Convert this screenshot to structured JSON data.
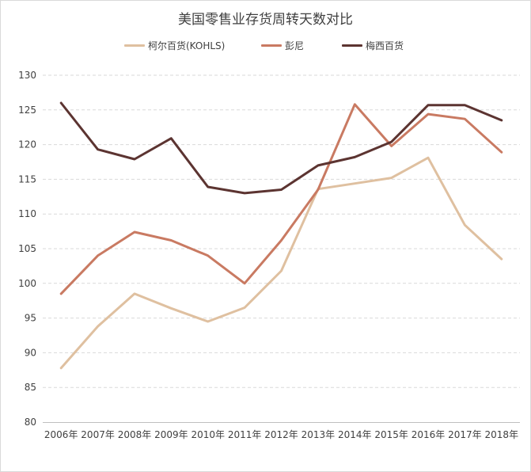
{
  "chart_data": {
    "type": "line",
    "title": "美国零售业存货周转天数对比",
    "categories": [
      "2006年",
      "2007年",
      "2008年",
      "2009年",
      "2010年",
      "2011年",
      "2012年",
      "2013年",
      "2014年",
      "2015年",
      "2016年",
      "2017年",
      "2018年"
    ],
    "series": [
      {
        "name": "柯尔百货(KOHLS)",
        "color": "#dfc0a0",
        "values": [
          87.8,
          93.8,
          98.5,
          96.4,
          94.5,
          96.5,
          101.8,
          113.6,
          114.4,
          115.2,
          118.1,
          108.4,
          103.5
        ]
      },
      {
        "name": "彭尼",
        "color": "#c97a62",
        "values": [
          98.5,
          104.0,
          107.4,
          106.2,
          104.0,
          100.0,
          106.2,
          113.5,
          125.8,
          119.8,
          124.4,
          123.7,
          118.9
        ]
      },
      {
        "name": "梅西百货",
        "color": "#5c3431",
        "values": [
          126.0,
          119.3,
          117.9,
          120.9,
          113.9,
          113.0,
          113.5,
          117.0,
          118.2,
          120.4,
          125.7,
          125.7,
          123.5
        ]
      }
    ],
    "ylim": [
      80,
      130
    ],
    "yticks": [
      80,
      85,
      90,
      95,
      100,
      105,
      110,
      115,
      120,
      125,
      130
    ],
    "grid": true,
    "legend_position": "top",
    "xlabel": "",
    "ylabel": ""
  }
}
